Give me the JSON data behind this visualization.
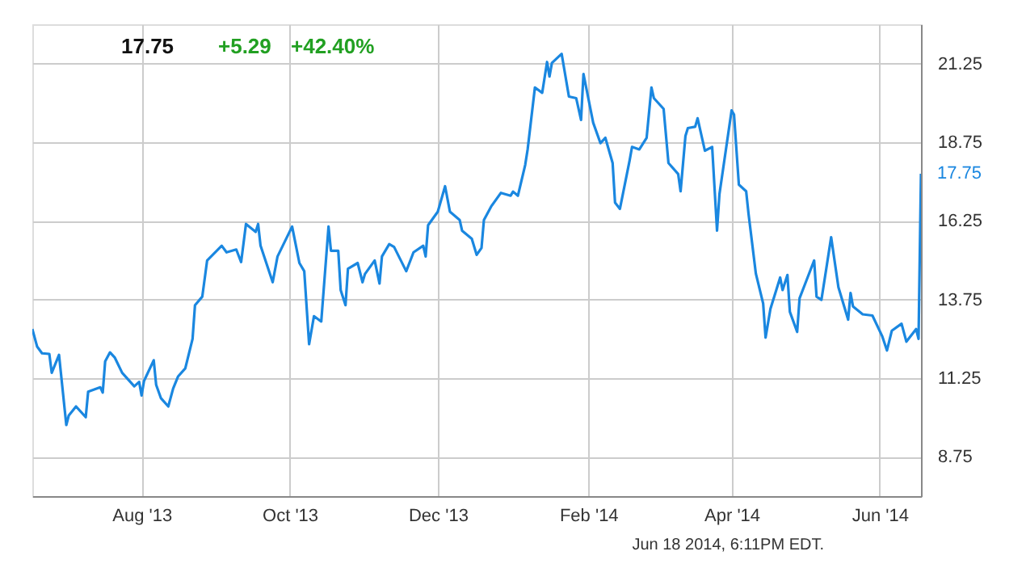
{
  "chart_data": {
    "type": "line",
    "x": [
      "2013-06-17",
      "2013-06-19",
      "2013-06-21",
      "2013-06-24",
      "2013-06-25",
      "2013-06-28",
      "2013-07-01",
      "2013-07-02",
      "2013-07-05",
      "2013-07-09",
      "2013-07-10",
      "2013-07-15",
      "2013-07-16",
      "2013-07-17",
      "2013-07-19",
      "2013-07-21",
      "2013-07-24",
      "2013-07-29",
      "2013-07-31",
      "2013-08-01",
      "2013-08-02",
      "2013-08-06",
      "2013-08-07",
      "2013-08-09",
      "2013-08-12",
      "2013-08-14",
      "2013-08-16",
      "2013-08-19",
      "2013-08-22",
      "2013-08-23",
      "2013-08-26",
      "2013-08-28",
      "2013-09-03",
      "2013-09-05",
      "2013-09-09",
      "2013-09-11",
      "2013-09-13",
      "2013-09-17",
      "2013-09-18",
      "2013-09-19",
      "2013-09-24",
      "2013-09-26",
      "2013-10-02",
      "2013-10-05",
      "2013-10-07",
      "2013-10-09",
      "2013-10-11",
      "2013-10-14",
      "2013-10-17",
      "2013-10-18",
      "2013-10-21",
      "2013-10-22",
      "2013-10-24",
      "2013-10-25",
      "2013-10-29",
      "2013-10-31",
      "2013-11-01",
      "2013-11-05",
      "2013-11-07",
      "2013-11-08",
      "2013-11-11",
      "2013-11-13",
      "2013-11-18",
      "2013-11-21",
      "2013-11-25",
      "2013-11-26",
      "2013-11-27",
      "2013-12-01",
      "2013-12-04",
      "2013-12-06",
      "2013-12-10",
      "2013-12-11",
      "2013-12-15",
      "2013-12-17",
      "2013-12-19",
      "2013-12-20",
      "2013-12-23",
      "2013-12-27",
      "2013-12-31",
      "2014-01-01",
      "2014-01-03",
      "2014-01-06",
      "2014-01-07",
      "2014-01-10",
      "2014-01-13",
      "2014-01-15",
      "2014-01-16",
      "2014-01-17",
      "2014-01-21",
      "2014-01-24",
      "2014-01-27",
      "2014-01-29",
      "2014-01-30",
      "2014-02-03",
      "2014-02-06",
      "2014-02-08",
      "2014-02-11",
      "2014-02-12",
      "2014-02-14",
      "2014-02-18",
      "2014-02-19",
      "2014-02-22",
      "2014-02-25",
      "2014-02-27",
      "2014-02-28",
      "2014-03-04",
      "2014-03-06",
      "2014-03-10",
      "2014-03-11",
      "2014-03-13",
      "2014-03-14",
      "2014-03-17",
      "2014-03-18",
      "2014-03-21",
      "2014-03-24",
      "2014-03-26",
      "2014-03-27",
      "2014-04-01",
      "2014-04-02",
      "2014-04-04",
      "2014-04-07",
      "2014-04-08",
      "2014-04-11",
      "2014-04-14",
      "2014-04-15",
      "2014-04-17",
      "2014-04-21",
      "2014-04-22",
      "2014-04-24",
      "2014-04-25",
      "2014-04-28",
      "2014-04-29",
      "2014-05-02",
      "2014-05-05",
      "2014-05-06",
      "2014-05-08",
      "2014-05-10",
      "2014-05-12",
      "2014-05-15",
      "2014-05-19",
      "2014-05-20",
      "2014-05-21",
      "2014-05-25",
      "2014-05-29",
      "2014-06-02",
      "2014-06-04",
      "2014-06-06",
      "2014-06-10",
      "2014-06-12",
      "2014-06-16",
      "2014-06-17",
      "2014-06-18"
    ],
    "series": [
      {
        "color": "#1a87e0",
        "values": [
          12.81,
          12.25,
          12.04,
          12.02,
          11.42,
          11.99,
          9.76,
          10.06,
          10.35,
          10.01,
          10.82,
          10.96,
          10.79,
          11.78,
          12.07,
          11.9,
          11.42,
          10.99,
          11.13,
          10.7,
          11.16,
          11.82,
          11.04,
          10.61,
          10.35,
          10.92,
          11.3,
          11.56,
          12.5,
          13.57,
          13.84,
          14.99,
          15.46,
          15.25,
          15.34,
          14.94,
          16.15,
          15.9,
          16.15,
          15.46,
          14.3,
          15.12,
          16.07,
          14.91,
          14.65,
          12.33,
          13.22,
          13.05,
          16.07,
          15.3,
          15.3,
          14.05,
          13.57,
          14.73,
          14.91,
          14.3,
          14.56,
          14.99,
          14.26,
          15.12,
          15.51,
          15.42,
          14.65,
          15.25,
          15.46,
          15.12,
          16.11,
          16.54,
          17.35,
          16.54,
          16.28,
          15.94,
          15.68,
          15.17,
          15.39,
          16.28,
          16.71,
          17.14,
          17.05,
          17.18,
          17.05,
          18.03,
          18.52,
          20.49,
          20.32,
          21.3,
          20.84,
          21.27,
          21.56,
          20.2,
          20.15,
          19.46,
          20.92,
          19.37,
          18.72,
          18.89,
          18.09,
          16.83,
          16.63,
          18.17,
          18.6,
          18.52,
          18.89,
          20.49,
          20.15,
          19.81,
          18.09,
          17.74,
          17.19,
          18.95,
          19.2,
          19.24,
          19.51,
          18.48,
          18.6,
          15.94,
          17.1,
          19.76,
          19.63,
          17.4,
          17.19,
          16.46,
          14.57,
          13.62,
          12.54,
          13.45,
          14.45,
          14.05,
          14.53,
          13.36,
          12.72,
          13.79,
          14.39,
          14.99,
          13.84,
          13.74,
          14.73,
          15.73,
          14.14,
          13.11,
          13.96,
          13.53,
          13.28,
          13.24,
          12.59,
          12.13,
          12.76,
          12.98,
          12.41,
          12.81,
          12.5,
          17.75
        ]
      }
    ],
    "xlim": [
      "2013-06-17",
      "2014-06-18"
    ],
    "xticks": [
      {
        "value": "2013-08-01",
        "label": "Aug '13"
      },
      {
        "value": "2013-10-01",
        "label": "Oct '13"
      },
      {
        "value": "2013-12-01",
        "label": "Dec '13"
      },
      {
        "value": "2014-02-01",
        "label": "Feb '14"
      },
      {
        "value": "2014-04-01",
        "label": "Apr '14"
      },
      {
        "value": "2014-06-01",
        "label": "Jun '14"
      }
    ],
    "ylim": [
      7.5,
      22.5
    ],
    "yticks": [
      8.75,
      11.25,
      13.75,
      16.25,
      18.75,
      21.25
    ],
    "grid": true,
    "legend": false,
    "marker": "none",
    "line_style": "solid",
    "annotations": [
      "17.75",
      "+5.29",
      "+42.40%",
      "Jun 18 2014, 6:11PM EDT.",
      {
        "text": "17.75",
        "x": "2014-06-18",
        "y": 17.75
      }
    ]
  }
}
